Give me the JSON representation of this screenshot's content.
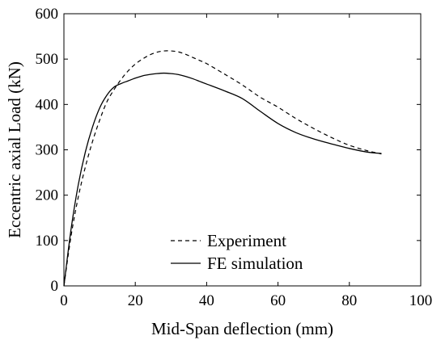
{
  "chart_data": {
    "type": "line",
    "title": "",
    "xlabel": "Mid-Span deflection (mm)",
    "ylabel": "Eccentric axial Load (kN)",
    "xlim": [
      0,
      100
    ],
    "ylim": [
      0,
      600
    ],
    "xticks": [
      0,
      20,
      40,
      60,
      80,
      100
    ],
    "yticks": [
      0,
      100,
      200,
      300,
      400,
      500,
      600
    ],
    "grid": false,
    "legend_position": "bottom-center",
    "series": [
      {
        "name": "Experiment",
        "style": "dashed",
        "color": "#000000",
        "x": [
          0,
          2,
          4,
          6,
          8,
          10,
          12,
          14,
          16,
          18,
          20,
          22,
          24,
          26,
          28,
          30,
          32,
          34,
          36,
          38,
          40,
          45,
          50,
          55,
          60,
          65,
          70,
          75,
          80,
          85,
          89
        ],
        "y": [
          0,
          110,
          195,
          262,
          318,
          365,
          405,
          432,
          455,
          474,
          489,
          500,
          509,
          515,
          518,
          518,
          516,
          511,
          504,
          497,
          490,
          467,
          443,
          416,
          394,
          369,
          347,
          327,
          310,
          298,
          291
        ]
      },
      {
        "name": "FE simulation",
        "style": "solid",
        "color": "#000000",
        "x": [
          0,
          2,
          4,
          6,
          8,
          10,
          12,
          14,
          16,
          18,
          20,
          22,
          24,
          26,
          28,
          30,
          32,
          34,
          36,
          38,
          40,
          45,
          50,
          55,
          60,
          65,
          70,
          75,
          80,
          85,
          89
        ],
        "y": [
          0,
          125,
          222,
          295,
          350,
          392,
          420,
          438,
          446,
          452,
          458,
          463,
          466,
          468,
          469,
          468,
          466,
          462,
          457,
          451,
          445,
          430,
          413,
          385,
          358,
          338,
          324,
          313,
          303,
          295,
          292
        ]
      }
    ]
  }
}
